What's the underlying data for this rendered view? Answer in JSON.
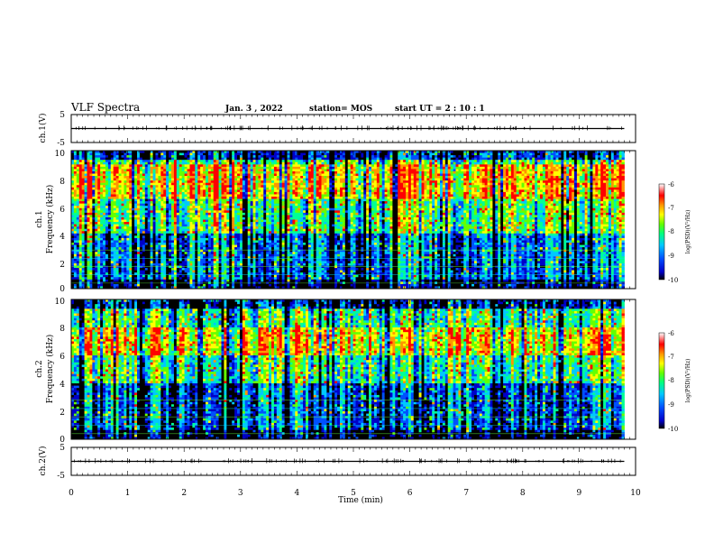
{
  "header": {
    "title": "VLF Spectra",
    "date": "Jan. 3 , 2022",
    "station": "station= MOS",
    "start": "start UT = 2 : 10 : 1"
  },
  "colors": {
    "spectrum": [
      "#000000",
      "#0000c8",
      "#0050ff",
      "#00c8ff",
      "#00ff96",
      "#64ff00",
      "#ffff00",
      "#ff9600",
      "#ff0000",
      "#ffffff"
    ],
    "trace": "#000000"
  },
  "chart_data": [
    {
      "type": "line",
      "panel": "ch1-waveform",
      "ylabel": "ch.1(V)",
      "ylim": [
        -5,
        5
      ],
      "yticks": [
        "5",
        "-5"
      ],
      "series": [
        {
          "x": [
            0,
            10
          ],
          "y": [
            0,
            0
          ]
        }
      ]
    },
    {
      "type": "heatmap",
      "panel": "ch1-spectrogram",
      "ylabel_line1": "ch.1",
      "ylabel_line2": "Frequency (kHz)",
      "ylim": [
        0,
        10
      ],
      "yticks": [
        "0",
        "2",
        "4",
        "6",
        "8",
        "10"
      ],
      "xlim": [
        0,
        9.8
      ],
      "colorbar": {
        "label": "log(PSD)(V²/Hz)",
        "range": [
          -10,
          -6
        ],
        "ticks": [
          "-6",
          "-7",
          "-8",
          "-9",
          "-10"
        ]
      },
      "intense_bands_kHz": [
        [
          6.5,
          9.0
        ]
      ],
      "bright_intervals_min": [
        [
          0.15,
          0.6
        ],
        [
          1.8,
          2.9
        ],
        [
          4.0,
          4.5
        ],
        [
          5.8,
          6.4
        ],
        [
          8.0,
          8.3
        ],
        [
          9.25,
          9.75
        ]
      ]
    },
    {
      "type": "heatmap",
      "panel": "ch2-spectrogram",
      "ylabel_line1": "ch.2",
      "ylabel_line2": "Frequency (kHz)",
      "ylim": [
        0,
        10
      ],
      "yticks": [
        "0",
        "2",
        "4",
        "6",
        "8",
        "10"
      ],
      "xlim": [
        0,
        9.8
      ],
      "colorbar": {
        "label": "log(PSD)(V²/Hz)",
        "range": [
          -10,
          -6
        ],
        "ticks": [
          "-6",
          "-7",
          "-8",
          "-9",
          "-10"
        ]
      },
      "intense_bands_kHz": [
        [
          6.0,
          8.0
        ]
      ],
      "bright_intervals_min": [
        [
          0.4,
          0.9
        ],
        [
          3.9,
          4.4
        ],
        [
          9.2,
          9.8
        ]
      ]
    },
    {
      "type": "line",
      "panel": "ch2-waveform",
      "ylabel": "ch.2(V)",
      "ylim": [
        -5,
        5
      ],
      "yticks": [
        "5",
        "-5"
      ],
      "series": [
        {
          "x": [
            0,
            10
          ],
          "y": [
            0,
            0
          ]
        }
      ]
    }
  ],
  "xaxis": {
    "label": "Time (min)",
    "range": [
      0,
      10
    ],
    "ticks": [
      "0",
      "1",
      "2",
      "3",
      "4",
      "5",
      "6",
      "7",
      "8",
      "9",
      "10"
    ]
  }
}
